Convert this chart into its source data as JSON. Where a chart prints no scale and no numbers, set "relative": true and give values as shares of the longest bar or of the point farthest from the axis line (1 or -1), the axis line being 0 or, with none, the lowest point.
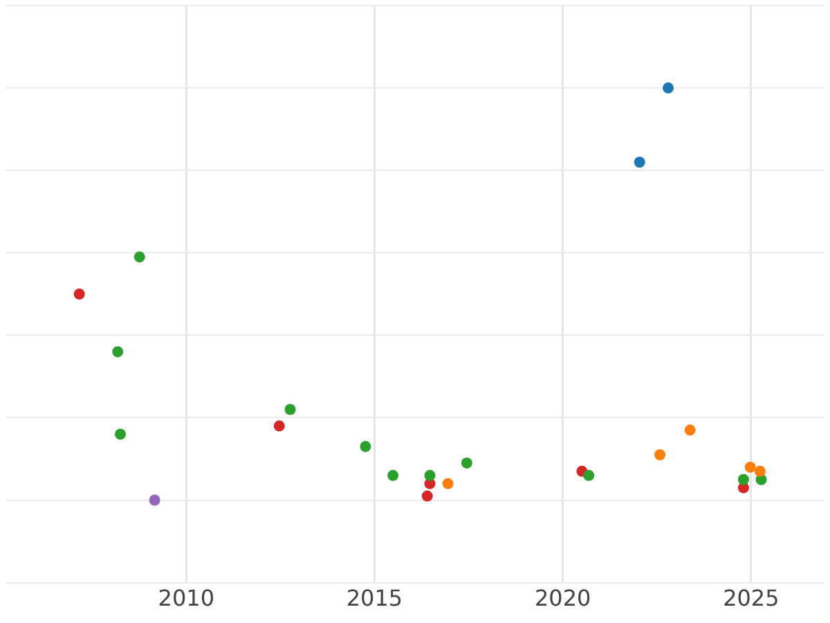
{
  "chart_data": {
    "type": "scatter",
    "relative": true,
    "xlim": [
      2005.2,
      2026.95
    ],
    "xticks": [
      2010,
      2015,
      2020,
      2025
    ],
    "grid": true,
    "marker": "circle",
    "series": [
      {
        "color": "#1f77b4",
        "x": [
          2022.8,
          2022.04
        ],
        "values": [
          1.0,
          0.82
        ]
      },
      {
        "color": "#ff7f0e",
        "x": [
          2016.95,
          2022.58,
          2023.38,
          2024.98,
          2025.24
        ],
        "values": [
          0.04,
          0.11,
          0.17,
          0.08,
          0.07
        ]
      },
      {
        "color": "#2ca02c",
        "x": [
          2008.76,
          2008.18,
          2008.25,
          2012.76,
          2014.76,
          2015.49,
          2016.47,
          2017.45,
          2020.69,
          2024.8,
          2025.27
        ],
        "values": [
          0.59,
          0.36,
          0.16,
          0.22,
          0.13,
          0.06,
          0.06,
          0.09,
          0.06,
          0.05,
          0.05
        ]
      },
      {
        "color": "#d62728",
        "x": [
          2007.16,
          2012.47,
          2016.47,
          2016.4,
          2020.51,
          2024.8
        ],
        "values": [
          0.5,
          0.18,
          0.04,
          0.01,
          0.07,
          0.03
        ]
      },
      {
        "color": "#9467bd",
        "x": [
          2009.16
        ],
        "values": [
          0
        ]
      }
    ]
  }
}
